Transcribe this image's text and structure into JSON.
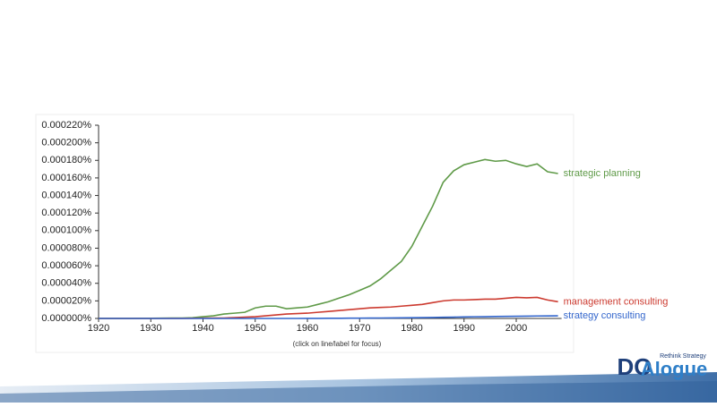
{
  "chart_data": {
    "type": "line",
    "note": "(click on line/label for focus)",
    "x": [
      1920,
      1922,
      1924,
      1926,
      1928,
      1930,
      1932,
      1934,
      1936,
      1938,
      1940,
      1942,
      1944,
      1946,
      1948,
      1950,
      1952,
      1954,
      1956,
      1958,
      1960,
      1962,
      1964,
      1966,
      1968,
      1970,
      1972,
      1974,
      1976,
      1978,
      1980,
      1982,
      1984,
      1986,
      1988,
      1990,
      1992,
      1994,
      1996,
      1998,
      2000,
      2002,
      2004,
      2006,
      2008
    ],
    "xlim": [
      1920,
      2008
    ],
    "xticks": [
      1920,
      1930,
      1940,
      1950,
      1960,
      1970,
      1980,
      1990,
      2000
    ],
    "ylim": [
      0,
      0.00022
    ],
    "yticks": [
      {
        "value": 0,
        "label": "0.000000%"
      },
      {
        "value": 2e-05,
        "label": "0.000020%"
      },
      {
        "value": 4e-05,
        "label": "0.000040%"
      },
      {
        "value": 6e-05,
        "label": "0.000060%"
      },
      {
        "value": 8e-05,
        "label": "0.000080%"
      },
      {
        "value": 0.0001,
        "label": "0.000100%"
      },
      {
        "value": 0.00012,
        "label": "0.000120%"
      },
      {
        "value": 0.00014,
        "label": "0.000140%"
      },
      {
        "value": 0.00016,
        "label": "0.000160%"
      },
      {
        "value": 0.00018,
        "label": "0.000180%"
      },
      {
        "value": 0.0002,
        "label": "0.000200%"
      },
      {
        "value": 0.00022,
        "label": "0.000220%"
      }
    ],
    "series": [
      {
        "name": "strategic planning",
        "color": "#5f9a48",
        "values": [
          1e-07,
          1e-07,
          1e-07,
          1e-07,
          2e-07,
          2e-07,
          3e-07,
          4e-07,
          5e-07,
          8e-07,
          2e-06,
          3e-06,
          5e-06,
          6e-06,
          7e-06,
          1.2e-05,
          1.4e-05,
          1.4e-05,
          1.1e-05,
          1.2e-05,
          1.3e-05,
          1.6e-05,
          1.9e-05,
          2.3e-05,
          2.7e-05,
          3.2e-05,
          3.7e-05,
          4.5e-05,
          5.5e-05,
          6.5e-05,
          8.2e-05,
          0.000105,
          0.000128,
          0.000155,
          0.000168,
          0.000175,
          0.000178,
          0.000181,
          0.000179,
          0.00018,
          0.000176,
          0.000173,
          0.000176,
          0.000167,
          0.000165
        ]
      },
      {
        "name": "management consulting",
        "color": "#cc3a2f",
        "values": [
          0,
          0,
          0,
          0,
          0,
          0,
          0,
          1e-07,
          1e-07,
          2e-07,
          3e-07,
          4e-07,
          5e-07,
          1e-06,
          1.5e-06,
          2e-06,
          3e-06,
          4e-06,
          5e-06,
          5.5e-06,
          6e-06,
          7e-06,
          8e-06,
          9e-06,
          1e-05,
          1.1e-05,
          1.2e-05,
          1.25e-05,
          1.3e-05,
          1.4e-05,
          1.5e-05,
          1.6e-05,
          1.8e-05,
          2e-05,
          2.1e-05,
          2.1e-05,
          2.15e-05,
          2.2e-05,
          2.2e-05,
          2.3e-05,
          2.4e-05,
          2.35e-05,
          2.4e-05,
          2.1e-05,
          1.9e-05
        ]
      },
      {
        "name": "strategy consulting",
        "color": "#3366cc",
        "values": [
          0,
          0,
          0,
          0,
          0,
          0,
          0,
          0,
          0,
          0,
          0,
          0,
          0,
          0,
          0,
          0,
          0,
          0,
          0,
          0,
          1e-07,
          1e-07,
          2e-07,
          2e-07,
          3e-07,
          3e-07,
          4e-07,
          5e-07,
          6e-07,
          7e-07,
          8e-07,
          1e-06,
          1.1e-06,
          1.3e-06,
          1.5e-06,
          1.7e-06,
          1.9e-06,
          2e-06,
          2.2e-06,
          2.4e-06,
          2.5e-06,
          2.6e-06,
          2.8e-06,
          2.9e-06,
          3e-06
        ]
      }
    ]
  },
  "logo": {
    "part1": "DO",
    "part2": "Alogue",
    "tagline": "Rethink Strategy"
  }
}
